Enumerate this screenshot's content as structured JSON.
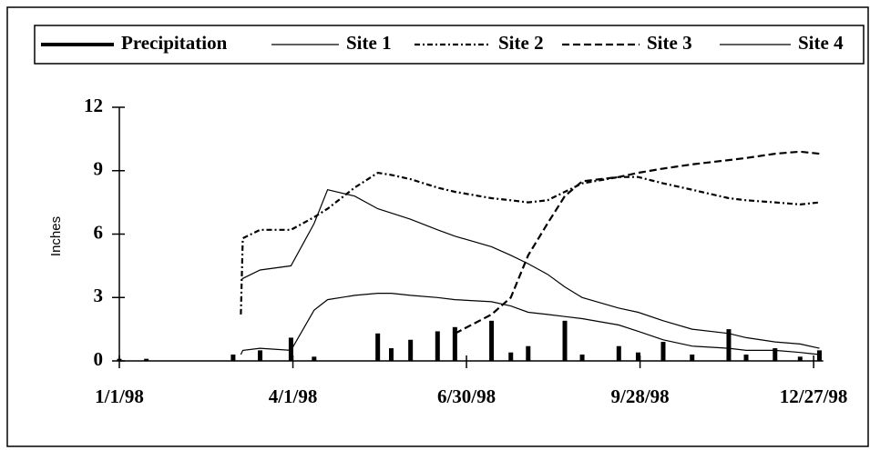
{
  "chart_data": {
    "type": "line",
    "y_label": "Inches",
    "xlim": [
      "1/1/98",
      "1/1/99"
    ],
    "xticks": [
      "1/1/98",
      "4/1/98",
      "6/30/98",
      "9/28/98",
      "12/27/98"
    ],
    "ylim": [
      0,
      12
    ],
    "yticks": [
      0,
      3,
      6,
      9,
      12
    ],
    "x": [
      "1/1/98",
      "1/15/98",
      "2/1/98",
      "2/15/98",
      "3/1/98",
      "3/5/98",
      "3/6/98",
      "3/15/98",
      "3/31/98",
      "4/12/98",
      "4/19/98",
      "5/3/98",
      "5/15/98",
      "5/22/98",
      "6/1/98",
      "6/15/98",
      "6/24/98",
      "7/13/98",
      "7/23/98",
      "8/1/98",
      "8/11/98",
      "8/20/98",
      "8/29/98",
      "9/17/98",
      "9/27/98",
      "10/10/98",
      "10/25/98",
      "11/13/98",
      "11/22/98",
      "12/7/98",
      "12/20/98",
      "12/30/98"
    ],
    "series": [
      {
        "name": "Precipitation",
        "color": "#000000",
        "dash": "bar",
        "values": [
          0.1,
          0.1,
          0,
          0,
          0.3,
          0,
          0,
          0.5,
          1.1,
          0.2,
          0,
          0,
          1.3,
          0.6,
          1.0,
          1.4,
          1.6,
          1.9,
          0.4,
          0.7,
          0,
          1.9,
          0.3,
          0.7,
          0.4,
          0.9,
          0.3,
          1.5,
          0.3,
          0.6,
          0.2,
          0.5
        ]
      },
      {
        "name": "Site 1",
        "color": "#000000",
        "dash": "solid",
        "values": [
          null,
          null,
          null,
          null,
          null,
          3.8,
          3.9,
          4.3,
          4.5,
          6.5,
          8.1,
          7.8,
          7.2,
          7.0,
          6.7,
          6.2,
          5.9,
          5.4,
          5.0,
          4.6,
          4.1,
          3.5,
          3.0,
          2.5,
          2.3,
          1.9,
          1.5,
          1.3,
          1.1,
          0.9,
          0.8,
          0.6
        ]
      },
      {
        "name": "Site 2",
        "color": "#000000",
        "dash": "dash-dot",
        "values": [
          null,
          null,
          null,
          null,
          null,
          2.2,
          5.8,
          6.2,
          6.2,
          6.8,
          7.2,
          8.2,
          8.9,
          8.8,
          8.6,
          8.2,
          8.0,
          7.7,
          7.6,
          7.5,
          7.6,
          8.0,
          8.4,
          8.7,
          8.7,
          8.4,
          8.1,
          7.7,
          7.6,
          7.5,
          7.4,
          7.5
        ]
      },
      {
        "name": "Site 3",
        "color": "#000000",
        "dash": "dash",
        "values": [
          null,
          null,
          null,
          null,
          null,
          null,
          null,
          null,
          null,
          null,
          null,
          null,
          null,
          null,
          null,
          null,
          1.3,
          2.2,
          3.0,
          5.0,
          6.5,
          7.8,
          8.5,
          8.7,
          8.9,
          9.1,
          9.3,
          9.5,
          9.6,
          9.8,
          9.9,
          9.8
        ]
      },
      {
        "name": "Site 4",
        "color": "#000000",
        "dash": "solid",
        "values": [
          null,
          null,
          null,
          null,
          null,
          0.3,
          0.5,
          0.6,
          0.5,
          2.4,
          2.9,
          3.1,
          3.2,
          3.2,
          3.1,
          3.0,
          2.9,
          2.8,
          2.6,
          2.3,
          2.2,
          2.1,
          2.0,
          1.7,
          1.4,
          1.0,
          0.7,
          0.6,
          0.5,
          0.5,
          0.4,
          0.3
        ]
      }
    ]
  }
}
